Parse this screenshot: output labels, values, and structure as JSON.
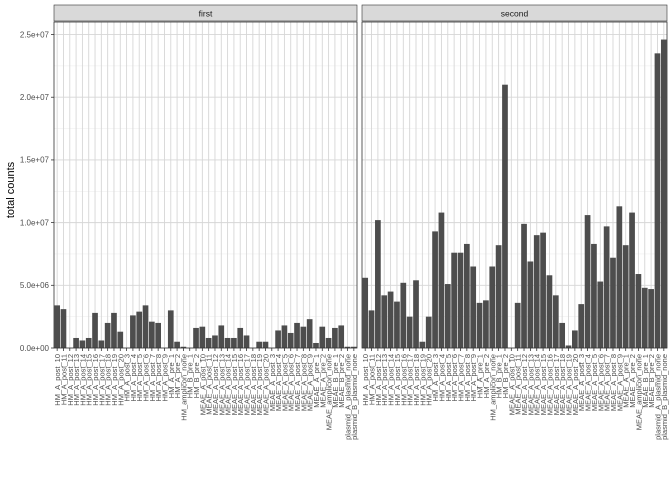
{
  "chart_data": {
    "type": "bar",
    "ylabel": "total counts",
    "xlabel": "",
    "ylim": [
      0,
      26000000
    ],
    "yticks": [
      0,
      5000000,
      10000000,
      15000000,
      20000000,
      25000000
    ],
    "ytick_labels": [
      "0.0e+00",
      "5.0e+06",
      "1.0e+07",
      "1.5e+07",
      "2.0e+07",
      "2.5e+07"
    ],
    "grid": true,
    "bar_color": "#4d4d4d",
    "strip_color": "#d9d9d9",
    "panel_border_color": "#333333",
    "grid_color": "#ebebeb",
    "facets": [
      "first",
      "second"
    ],
    "categories": [
      "HM_A_post_10",
      "HM_A_post_11",
      "HM_A_post_12",
      "HM_A_post_13",
      "HM_A_post_14",
      "HM_A_post_15",
      "HM_A_post_16",
      "HM_A_post_17",
      "HM_A_post_18",
      "HM_A_post_19",
      "HM_A_post_20",
      "HM_A_post_3",
      "HM_A_post_4",
      "HM_A_post_5",
      "HM_A_post_6",
      "HM_A_post_7",
      "HM_A_post_8",
      "HM_A_post_9",
      "HM_A_pre_1",
      "HM_A_pre_2",
      "HM_amplicon_none",
      "HM_B_pre_1",
      "HM_B_pre_2",
      "MEAE_A_post_10",
      "MEAE_A_post_11",
      "MEAE_A_post_12",
      "MEAE_A_post_13",
      "MEAE_A_post_14",
      "MEAE_A_post_15",
      "MEAE_A_post_16",
      "MEAE_A_post_17",
      "MEAE_A_post_18",
      "MEAE_A_post_19",
      "MEAE_A_post_20",
      "MEAE_A_post_3",
      "MEAE_A_post_4",
      "MEAE_A_post_5",
      "MEAE_A_post_6",
      "MEAE_A_post_7",
      "MEAE_A_post_8",
      "MEAE_A_post_9",
      "MEAE_A_pre_1",
      "MEAE_A_pre_2",
      "MEAE_amplicon_none",
      "MEAE_B_pre_1",
      "MEAE_B_pre_2",
      "plasmid_A_plasmid_none",
      "plasmid_B_plasmid_none"
    ],
    "series": [
      {
        "name": "first",
        "values": [
          3400000,
          3100000,
          0,
          800000,
          600000,
          800000,
          2800000,
          600000,
          2000000,
          2800000,
          1300000,
          0,
          2600000,
          2900000,
          3400000,
          2100000,
          2000000,
          0,
          3000000,
          500000,
          100000,
          0,
          1600000,
          1700000,
          800000,
          1000000,
          1800000,
          800000,
          800000,
          1600000,
          1000000,
          0,
          500000,
          500000,
          0,
          1400000,
          1800000,
          1200000,
          2000000,
          1700000,
          2300000,
          400000,
          1700000,
          800000,
          1600000,
          1800000,
          100000,
          100000
        ]
      },
      {
        "name": "second",
        "values": [
          5600000,
          3000000,
          10200000,
          4200000,
          4500000,
          3700000,
          5200000,
          2500000,
          5400000,
          500000,
          2500000,
          9300000,
          10800000,
          5100000,
          7600000,
          7600000,
          8300000,
          6500000,
          3600000,
          3800000,
          6500000,
          8200000,
          21000000,
          0,
          3600000,
          9900000,
          6900000,
          9000000,
          9200000,
          5800000,
          4200000,
          2000000,
          200000,
          1400000,
          3500000,
          10600000,
          8300000,
          5300000,
          9700000,
          7200000,
          11300000,
          8200000,
          10800000,
          5900000,
          4800000,
          4700000,
          23500000,
          24600000
        ]
      }
    ]
  }
}
